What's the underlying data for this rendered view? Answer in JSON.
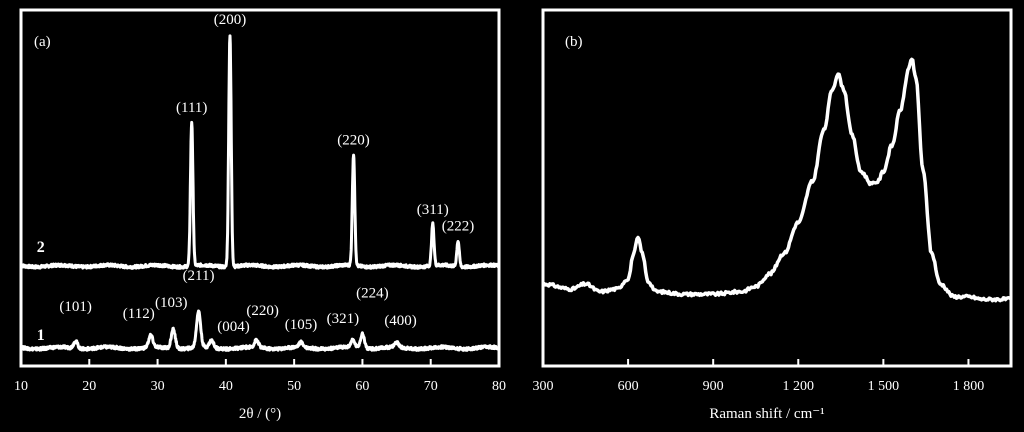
{
  "colors": {
    "background": "#000000",
    "foreground": "#ffffff"
  },
  "chart_data": [
    {
      "type": "line",
      "panel": "(a)",
      "xlabel": "2θ / (°)",
      "xlim": [
        10,
        80
      ],
      "xticks": [
        "10",
        "20",
        "30",
        "40",
        "50",
        "60",
        "70",
        "80"
      ],
      "grid": false,
      "series": [
        {
          "name": "2",
          "peaks": [
            {
              "label": "(111)",
              "x": 35.0,
              "height": 0.62
            },
            {
              "label": "(200)",
              "x": 40.6,
              "height": 1.0
            },
            {
              "label": "(220)",
              "x": 58.7,
              "height": 0.48
            },
            {
              "label": "(311)",
              "x": 70.3,
              "height": 0.18
            },
            {
              "label": "(222)",
              "x": 74.0,
              "height": 0.11
            }
          ]
        },
        {
          "name": "1",
          "peaks": [
            {
              "label": "(101)",
              "x": 18.0,
              "height": 0.03
            },
            {
              "label": "(112)",
              "x": 29.0,
              "height": 0.05
            },
            {
              "label": "(103)",
              "x": 32.3,
              "height": 0.08
            },
            {
              "label": "(211)",
              "x": 36.0,
              "height": 0.15
            },
            {
              "label": "(004)",
              "x": 37.9,
              "height": 0.03
            },
            {
              "label": "(220)",
              "x": 44.5,
              "height": 0.03
            },
            {
              "label": "(105)",
              "x": 51.0,
              "height": 0.02
            },
            {
              "label": "(321)",
              "x": 58.6,
              "height": 0.03
            },
            {
              "label": "(224)",
              "x": 60.0,
              "height": 0.06
            },
            {
              "label": "(400)",
              "x": 65.0,
              "height": 0.02
            }
          ]
        }
      ]
    },
    {
      "type": "line",
      "panel": "(b)",
      "xlabel": "Raman shift / cm⁻¹",
      "xlim": [
        300,
        1950
      ],
      "xticks": [
        "300",
        "600",
        "900",
        "1 200",
        "1 500",
        "1 800"
      ],
      "grid": false,
      "series": [
        {
          "name": "",
          "x": [
            300,
            400,
            450,
            500,
            560,
            600,
            620,
            635,
            650,
            670,
            700,
            800,
            900,
            1000,
            1050,
            1100,
            1150,
            1200,
            1250,
            1290,
            1320,
            1340,
            1360,
            1390,
            1420,
            1460,
            1480,
            1500,
            1530,
            1560,
            1590,
            1600,
            1615,
            1640,
            1670,
            1700,
            1750,
            1800,
            1850,
            1900,
            1950
          ],
          "y": [
            0.18,
            0.16,
            0.18,
            0.15,
            0.16,
            0.2,
            0.3,
            0.36,
            0.3,
            0.19,
            0.15,
            0.14,
            0.14,
            0.15,
            0.17,
            0.22,
            0.3,
            0.42,
            0.58,
            0.78,
            0.94,
            1.0,
            0.94,
            0.76,
            0.62,
            0.57,
            0.58,
            0.62,
            0.72,
            0.86,
            1.02,
            1.06,
            0.98,
            0.62,
            0.3,
            0.18,
            0.13,
            0.13,
            0.12,
            0.12,
            0.12
          ]
        }
      ]
    }
  ]
}
